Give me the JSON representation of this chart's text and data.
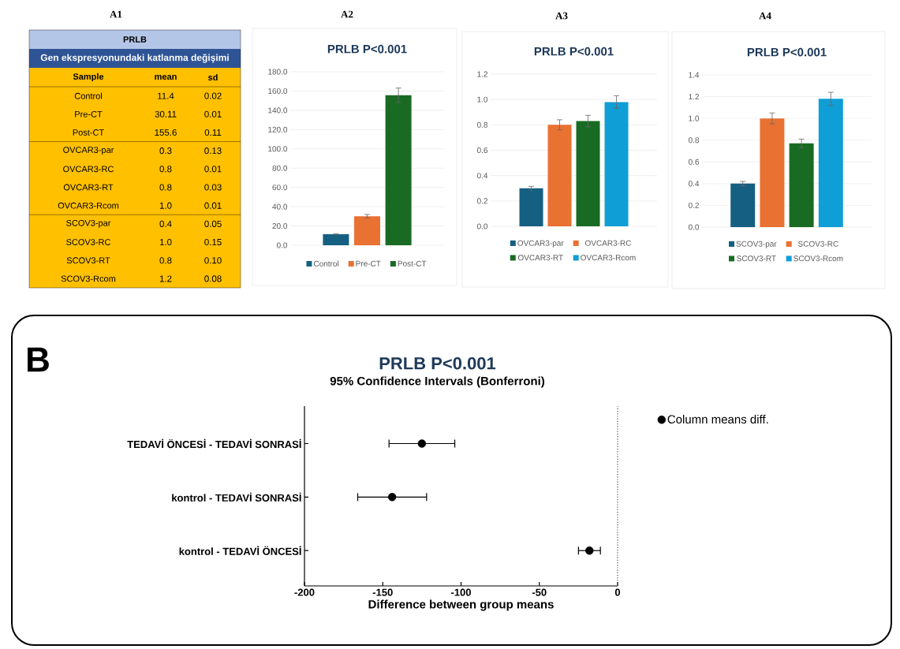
{
  "chart_data": [
    {
      "type": "other",
      "title": "PRLB",
      "subtitle": "Gen ekspresyonundaki katlanma değişimi",
      "annotations": [
        "A1",
        "Sample"
      ],
      "categories": [
        "Control",
        "Pre-CT",
        "Post-CT",
        "OVCAR3-par",
        "OVCAR3-RC",
        "OVCAR3-RT",
        "OVCAR3-Rcom",
        "SCOV3-par",
        "SCOV3-RC",
        "SCOV3-RT",
        "SCOV3-Rcom"
      ],
      "series": [
        {
          "name": "mean",
          "values": [
            11.4,
            30.11,
            155.6,
            0.3,
            0.8,
            0.8,
            1.0,
            0.4,
            1.0,
            0.8,
            1.2
          ],
          "value_labels": [
            "11.4",
            "30.11",
            "155.6",
            "0.3",
            "0.8",
            "0.8",
            "1.0",
            "0.4",
            "1.0",
            "0.8",
            "1.2"
          ]
        },
        {
          "name": "sd",
          "values": [
            0.02,
            0.01,
            0.11,
            0.13,
            0.01,
            0.03,
            0.01,
            0.05,
            0.15,
            0.1,
            0.08
          ],
          "value_labels": [
            "0.02",
            "0.01",
            "0.11",
            "0.13",
            "0.01",
            "0.03",
            "0.01",
            "0.05",
            "0.15",
            "0.10",
            "0.08"
          ]
        }
      ]
    },
    {
      "type": "bar",
      "title": "PRLB P<0.001",
      "annotations": [
        "A2"
      ],
      "categories": [
        null
      ],
      "series": [
        {
          "name": "Control",
          "color": "#155f82",
          "values": [
            11.4
          ],
          "errors": [
            0.6
          ]
        },
        {
          "name": "Pre-CT",
          "color": "#e97132",
          "values": [
            30.11
          ],
          "errors": [
            1.8
          ]
        },
        {
          "name": "Post-CT",
          "color": "#196b24",
          "values": [
            155.6
          ],
          "errors": [
            7.5
          ]
        }
      ],
      "ylim": [
        0,
        180
      ],
      "yticks": [
        {
          "value": 0,
          "label": "0.0"
        },
        {
          "value": 20,
          "label": "20.0"
        },
        {
          "value": 40,
          "label": "40.0"
        },
        {
          "value": 60,
          "label": "60.0"
        },
        {
          "value": 80,
          "label": "80.0"
        },
        {
          "value": 100,
          "label": "100.0"
        },
        {
          "value": 120,
          "label": "120.0"
        },
        {
          "value": 140,
          "label": "140.0"
        },
        {
          "value": 160,
          "label": "160.0"
        },
        {
          "value": 180,
          "label": "180.0"
        }
      ],
      "grid": "y",
      "legend": "bottom",
      "tick_labels": "y"
    },
    {
      "type": "bar",
      "title": "PRLB P<0.001",
      "annotations": [
        "A3"
      ],
      "categories": [
        null
      ],
      "series": [
        {
          "name": "OVCAR3-par",
          "color": "#155f82",
          "values": [
            0.3
          ],
          "errors": [
            0.015
          ]
        },
        {
          "name": "OVCAR3-RC",
          "color": "#e97132",
          "values": [
            0.8
          ],
          "errors": [
            0.04
          ]
        },
        {
          "name": "OVCAR3-RT",
          "color": "#196b24",
          "values": [
            0.83
          ],
          "errors": [
            0.045
          ]
        },
        {
          "name": "OVCAR3-Rcom",
          "color": "#0f9ed5",
          "values": [
            0.98
          ],
          "errors": [
            0.05
          ]
        }
      ],
      "ylim": [
        0,
        1.2
      ],
      "yticks": [
        {
          "value": 0,
          "label": "0.0"
        },
        {
          "value": 0.2,
          "label": "0.2"
        },
        {
          "value": 0.4,
          "label": "0.4"
        },
        {
          "value": 0.6,
          "label": "0.6"
        },
        {
          "value": 0.8,
          "label": "0.8"
        },
        {
          "value": 1.0,
          "label": "1.0"
        },
        {
          "value": 1.2,
          "label": "1.2"
        }
      ],
      "grid": "y",
      "legend": "bottom",
      "tick_labels": "y"
    },
    {
      "type": "bar",
      "title": "PRLB P<0.001",
      "annotations": [
        "A4"
      ],
      "categories": [
        null
      ],
      "series": [
        {
          "name": "SCOV3-par",
          "color": "#155f82",
          "values": [
            0.4
          ],
          "errors": [
            0.02
          ]
        },
        {
          "name": "SCOV3-RC",
          "color": "#e97132",
          "values": [
            1.0
          ],
          "errors": [
            0.05
          ]
        },
        {
          "name": "SCOV3-RT",
          "color": "#196b24",
          "values": [
            0.77
          ],
          "errors": [
            0.04
          ]
        },
        {
          "name": "SCOV3-Rcom",
          "color": "#0f9ed5",
          "values": [
            1.18
          ],
          "errors": [
            0.06
          ]
        }
      ],
      "ylim": [
        0,
        1.4
      ],
      "yticks": [
        {
          "value": 0,
          "label": "0.0"
        },
        {
          "value": 0.2,
          "label": "0.2"
        },
        {
          "value": 0.4,
          "label": "0.4"
        },
        {
          "value": 0.6,
          "label": "0.6"
        },
        {
          "value": 0.8,
          "label": "0.8"
        },
        {
          "value": 1.0,
          "label": "1.0"
        },
        {
          "value": 1.2,
          "label": "1.2"
        },
        {
          "value": 1.4,
          "label": "1.4"
        }
      ],
      "grid": "y",
      "legend": "bottom",
      "tick_labels": "y"
    },
    {
      "type": "scatter",
      "orientation": "horizontal",
      "title": "PRLB P<0.001",
      "subtitle": "95% Confidence Intervals (Bonferroni)",
      "xlabel": "Difference between group means",
      "annotations": [
        "B"
      ],
      "categories": [
        "TEDAVİ ÖNCESİ - TEDAVİ SONRASİ",
        "kontrol - TEDAVİ SONRASİ",
        "kontrol - TEDAVİ ÖNCESİ"
      ],
      "series": [
        {
          "name": "Column means diff.",
          "color": "#000000",
          "values": [
            -125,
            -144,
            -18
          ],
          "errors": [
            21,
            22,
            7
          ]
        }
      ],
      "xlim": [
        -200,
        0
      ],
      "xticks": [
        -200,
        -150,
        -100,
        -50,
        0
      ],
      "ref_lines": [
        {
          "axis": "x",
          "value": 0,
          "line_style": "dotted"
        }
      ],
      "marker": "circle",
      "legend": "top right"
    }
  ]
}
